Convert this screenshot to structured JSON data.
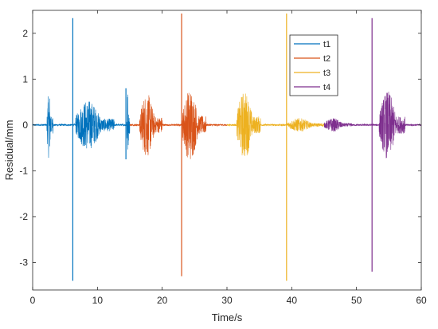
{
  "chart_data": {
    "type": "line",
    "title": "",
    "xlabel": "Time/s",
    "ylabel": "Residual/mm",
    "xlim": [
      0,
      60
    ],
    "ylim": [
      -3.6,
      2.5
    ],
    "xticks": [
      0,
      10,
      20,
      30,
      40,
      50,
      60
    ],
    "yticks": [
      -3,
      -2,
      -1,
      0,
      1,
      2
    ],
    "grid": false,
    "legend_position": "top-right",
    "series": [
      {
        "name": "t1",
        "color": "#0072BD",
        "segments": [
          [
            0,
            15
          ]
        ],
        "bursts": [
          {
            "t_start": 2.2,
            "t_end": 3.2,
            "amplitude": 0.75
          },
          {
            "t_start": 6.6,
            "t_end": 12.6,
            "amplitude": 0.55
          },
          {
            "t_start": 14.5,
            "t_end": 15.0,
            "amplitude": 0.8
          }
        ],
        "spikes": [
          {
            "t": 6.2,
            "max": 2.33,
            "min": -3.4
          },
          {
            "t": 14.4,
            "max": 0.8,
            "min": -0.75
          }
        ]
      },
      {
        "name": "t2",
        "color": "#D95319",
        "segments": [
          [
            15,
            30
          ]
        ],
        "bursts": [
          {
            "t_start": 16.5,
            "t_end": 20.0,
            "amplitude": 0.7
          },
          {
            "t_start": 23.1,
            "t_end": 26.8,
            "amplitude": 0.8
          }
        ],
        "spikes": [
          {
            "t": 23.0,
            "max": 2.43,
            "min": -3.3
          }
        ]
      },
      {
        "name": "t3",
        "color": "#EDB120",
        "segments": [
          [
            30,
            45
          ]
        ],
        "bursts": [
          {
            "t_start": 31.5,
            "t_end": 35.2,
            "amplitude": 0.75
          },
          {
            "t_start": 39.3,
            "t_end": 45.0,
            "amplitude": 0.15
          }
        ],
        "spikes": [
          {
            "t": 39.2,
            "max": 2.43,
            "min": -3.4
          }
        ]
      },
      {
        "name": "t4",
        "color": "#7E2F8E",
        "segments": [
          [
            45,
            60
          ]
        ],
        "bursts": [
          {
            "t_start": 45.0,
            "t_end": 49.3,
            "amplitude": 0.15
          },
          {
            "t_start": 53.5,
            "t_end": 57.5,
            "amplitude": 0.75
          }
        ],
        "spikes": [
          {
            "t": 52.4,
            "max": 2.33,
            "min": -3.2
          }
        ]
      }
    ]
  }
}
